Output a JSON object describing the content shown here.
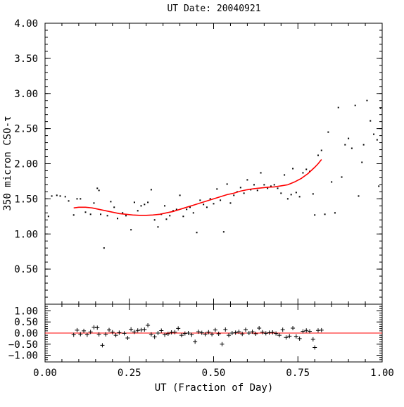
{
  "chart_data": [
    {
      "type": "scatter",
      "title": "UT Date: 20040921",
      "xlabel": "",
      "ylabel": "350 micron CSO-τ",
      "xlim": [
        0,
        1
      ],
      "ylim": [
        0,
        4
      ],
      "yticks": [
        "4.00",
        "3.50",
        "3.00",
        "2.50",
        "2.00",
        "1.50",
        "1.00",
        "0.50"
      ],
      "ytick_values": [
        4.0,
        3.5,
        3.0,
        2.5,
        2.0,
        1.5,
        1.0,
        0.5
      ],
      "grid": false,
      "series": [
        {
          "marker": "dot",
          "color": "#000000",
          "points": [
            [
              0.01,
              1.25
            ],
            [
              0.02,
              1.54
            ],
            [
              0.035,
              1.55
            ],
            [
              0.045,
              1.54
            ],
            [
              0.06,
              1.53
            ],
            [
              0.07,
              1.47
            ],
            [
              0.085,
              1.27
            ],
            [
              0.095,
              1.5
            ],
            [
              0.105,
              1.5
            ],
            [
              0.12,
              1.31
            ],
            [
              0.135,
              1.28
            ],
            [
              0.145,
              1.44
            ],
            [
              0.155,
              1.65
            ],
            [
              0.16,
              1.62
            ],
            [
              0.165,
              1.28
            ],
            [
              0.175,
              0.8
            ],
            [
              0.185,
              1.26
            ],
            [
              0.195,
              1.46
            ],
            [
              0.205,
              1.38
            ],
            [
              0.215,
              1.22
            ],
            [
              0.23,
              1.3
            ],
            [
              0.24,
              1.26
            ],
            [
              0.255,
              1.06
            ],
            [
              0.265,
              1.45
            ],
            [
              0.275,
              1.33
            ],
            [
              0.285,
              1.4
            ],
            [
              0.295,
              1.42
            ],
            [
              0.305,
              1.45
            ],
            [
              0.315,
              1.63
            ],
            [
              0.325,
              1.2
            ],
            [
              0.335,
              1.1
            ],
            [
              0.345,
              1.28
            ],
            [
              0.355,
              1.4
            ],
            [
              0.36,
              1.21
            ],
            [
              0.37,
              1.26
            ],
            [
              0.38,
              1.33
            ],
            [
              0.39,
              1.35
            ],
            [
              0.4,
              1.55
            ],
            [
              0.41,
              1.25
            ],
            [
              0.42,
              1.35
            ],
            [
              0.43,
              1.38
            ],
            [
              0.44,
              1.3
            ],
            [
              0.45,
              1.02
            ],
            [
              0.46,
              1.48
            ],
            [
              0.47,
              1.42
            ],
            [
              0.48,
              1.38
            ],
            [
              0.49,
              1.5
            ],
            [
              0.5,
              1.43
            ],
            [
              0.51,
              1.64
            ],
            [
              0.52,
              1.48
            ],
            [
              0.53,
              1.03
            ],
            [
              0.54,
              1.71
            ],
            [
              0.55,
              1.44
            ],
            [
              0.56,
              1.55
            ],
            [
              0.57,
              1.6
            ],
            [
              0.58,
              1.66
            ],
            [
              0.59,
              1.58
            ],
            [
              0.6,
              1.77
            ],
            [
              0.61,
              1.63
            ],
            [
              0.62,
              1.7
            ],
            [
              0.63,
              1.62
            ],
            [
              0.64,
              1.87
            ],
            [
              0.65,
              1.7
            ],
            [
              0.66,
              1.65
            ],
            [
              0.67,
              1.68
            ],
            [
              0.68,
              1.7
            ],
            [
              0.69,
              1.65
            ],
            [
              0.7,
              1.58
            ],
            [
              0.71,
              1.84
            ],
            [
              0.72,
              1.5
            ],
            [
              0.73,
              1.56
            ],
            [
              0.735,
              1.93
            ],
            [
              0.745,
              1.59
            ],
            [
              0.755,
              1.53
            ],
            [
              0.765,
              1.87
            ],
            [
              0.775,
              1.92
            ],
            [
              0.785,
              1.89
            ],
            [
              0.795,
              1.57
            ],
            [
              0.8,
              1.27
            ],
            [
              0.81,
              2.12
            ],
            [
              0.82,
              2.19
            ],
            [
              0.83,
              1.28
            ],
            [
              0.84,
              2.45
            ],
            [
              0.85,
              1.74
            ],
            [
              0.86,
              1.3
            ],
            [
              0.87,
              2.8
            ],
            [
              0.88,
              1.81
            ],
            [
              0.89,
              2.27
            ],
            [
              0.9,
              2.36
            ],
            [
              0.91,
              2.22
            ],
            [
              0.92,
              2.83
            ],
            [
              0.93,
              1.54
            ],
            [
              0.94,
              2.02
            ],
            [
              0.945,
              2.27
            ],
            [
              0.955,
              2.9
            ],
            [
              0.965,
              2.61
            ],
            [
              0.975,
              2.42
            ],
            [
              0.985,
              2.34
            ],
            [
              0.99,
              1.68
            ],
            [
              0.995,
              2.79
            ]
          ]
        },
        {
          "marker": "fit-line",
          "color": "#ff0000",
          "points": [
            [
              0.085,
              1.37
            ],
            [
              0.1,
              1.38
            ],
            [
              0.12,
              1.38
            ],
            [
              0.14,
              1.37
            ],
            [
              0.16,
              1.35
            ],
            [
              0.18,
              1.33
            ],
            [
              0.2,
              1.31
            ],
            [
              0.22,
              1.29
            ],
            [
              0.24,
              1.28
            ],
            [
              0.26,
              1.27
            ],
            [
              0.28,
              1.265
            ],
            [
              0.3,
              1.265
            ],
            [
              0.32,
              1.27
            ],
            [
              0.34,
              1.28
            ],
            [
              0.36,
              1.3
            ],
            [
              0.38,
              1.32
            ],
            [
              0.4,
              1.35
            ],
            [
              0.42,
              1.38
            ],
            [
              0.44,
              1.41
            ],
            [
              0.46,
              1.44
            ],
            [
              0.48,
              1.47
            ],
            [
              0.5,
              1.5
            ],
            [
              0.52,
              1.53
            ],
            [
              0.54,
              1.56
            ],
            [
              0.56,
              1.58
            ],
            [
              0.58,
              1.61
            ],
            [
              0.6,
              1.63
            ],
            [
              0.62,
              1.645
            ],
            [
              0.64,
              1.655
            ],
            [
              0.66,
              1.665
            ],
            [
              0.68,
              1.67
            ],
            [
              0.7,
              1.685
            ],
            [
              0.72,
              1.7
            ],
            [
              0.74,
              1.74
            ],
            [
              0.76,
              1.79
            ],
            [
              0.78,
              1.86
            ],
            [
              0.8,
              1.95
            ],
            [
              0.81,
              2.0
            ],
            [
              0.82,
              2.06
            ]
          ]
        }
      ]
    },
    {
      "type": "scatter",
      "title": "",
      "xlabel": "UT (Fraction of Day)",
      "ylabel": "",
      "xlim": [
        0,
        1
      ],
      "ylim": [
        -1.3,
        1.3
      ],
      "yticks": [
        "1.00",
        "0.50",
        "0.00",
        "−0.50",
        "−1.00"
      ],
      "ytick_values": [
        1.0,
        0.5,
        0.0,
        -0.5,
        -1.0
      ],
      "xticks": [
        "0.00",
        "0.25",
        "0.50",
        "0.75",
        "1.00"
      ],
      "xtick_values": [
        0.0,
        0.25,
        0.5,
        0.75,
        1.0
      ],
      "zero_line_color": "#ff0000",
      "grid": false,
      "series": [
        {
          "marker": "plus",
          "color": "#000000",
          "points": [
            [
              0.085,
              -0.08
            ],
            [
              0.095,
              0.13
            ],
            [
              0.105,
              -0.05
            ],
            [
              0.115,
              0.1
            ],
            [
              0.125,
              -0.08
            ],
            [
              0.135,
              0.05
            ],
            [
              0.145,
              0.26
            ],
            [
              0.155,
              0.24
            ],
            [
              0.16,
              -0.06
            ],
            [
              0.17,
              -0.55
            ],
            [
              0.18,
              -0.06
            ],
            [
              0.19,
              0.14
            ],
            [
              0.2,
              0.04
            ],
            [
              0.21,
              -0.1
            ],
            [
              0.22,
              0.02
            ],
            [
              0.235,
              -0.01
            ],
            [
              0.245,
              -0.22
            ],
            [
              0.255,
              0.17
            ],
            [
              0.265,
              0.05
            ],
            [
              0.275,
              0.12
            ],
            [
              0.285,
              0.14
            ],
            [
              0.295,
              0.16
            ],
            [
              0.305,
              0.35
            ],
            [
              0.315,
              -0.06
            ],
            [
              0.325,
              -0.17
            ],
            [
              0.335,
              0.0
            ],
            [
              0.345,
              0.11
            ],
            [
              0.355,
              -0.08
            ],
            [
              0.365,
              -0.03
            ],
            [
              0.375,
              0.03
            ],
            [
              0.385,
              0.04
            ],
            [
              0.395,
              0.21
            ],
            [
              0.405,
              -0.1
            ],
            [
              0.415,
              -0.02
            ],
            [
              0.425,
              0.0
            ],
            [
              0.435,
              -0.08
            ],
            [
              0.445,
              -0.39
            ],
            [
              0.455,
              0.06
            ],
            [
              0.465,
              0.01
            ],
            [
              0.475,
              -0.05
            ],
            [
              0.485,
              0.04
            ],
            [
              0.495,
              -0.05
            ],
            [
              0.505,
              0.14
            ],
            [
              0.515,
              -0.03
            ],
            [
              0.525,
              -0.5
            ],
            [
              0.535,
              0.16
            ],
            [
              0.545,
              -0.1
            ],
            [
              0.555,
              0.0
            ],
            [
              0.565,
              0.02
            ],
            [
              0.575,
              0.06
            ],
            [
              0.585,
              -0.04
            ],
            [
              0.595,
              0.15
            ],
            [
              0.605,
              0.0
            ],
            [
              0.615,
              0.06
            ],
            [
              0.625,
              -0.03
            ],
            [
              0.635,
              0.22
            ],
            [
              0.645,
              0.04
            ],
            [
              0.655,
              -0.01
            ],
            [
              0.665,
              0.02
            ],
            [
              0.675,
              0.03
            ],
            [
              0.685,
              -0.02
            ],
            [
              0.695,
              -0.1
            ],
            [
              0.705,
              0.15
            ],
            [
              0.715,
              -0.2
            ],
            [
              0.725,
              -0.14
            ],
            [
              0.735,
              0.22
            ],
            [
              0.745,
              -0.15
            ],
            [
              0.755,
              -0.25
            ],
            [
              0.765,
              0.08
            ],
            [
              0.775,
              0.12
            ],
            [
              0.785,
              0.08
            ],
            [
              0.795,
              -0.28
            ],
            [
              0.8,
              -0.65
            ],
            [
              0.81,
              0.12
            ],
            [
              0.82,
              0.13
            ]
          ]
        }
      ]
    }
  ]
}
